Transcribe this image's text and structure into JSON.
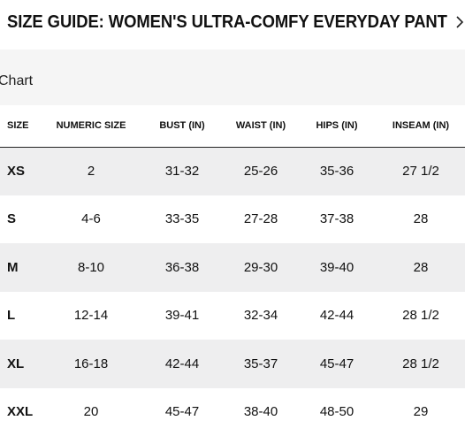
{
  "header": {
    "title": "SIZE GUIDE: WOMEN'S ULTRA-COMFY EVERYDAY PANT",
    "close_icon": "chevron-right-icon"
  },
  "tabs": {
    "active_label": "Chart"
  },
  "table": {
    "columns": [
      "SIZE",
      "NUMERIC SIZE",
      "BUST (IN)",
      "WAIST (IN)",
      "HIPS (IN)",
      "INSEAM (IN)"
    ],
    "rows": [
      [
        "XS",
        "2",
        "31-32",
        "25-26",
        "35-36",
        "27 1/2"
      ],
      [
        "S",
        "4-6",
        "33-35",
        "27-28",
        "37-38",
        "28"
      ],
      [
        "M",
        "8-10",
        "36-38",
        "29-30",
        "39-40",
        "28"
      ],
      [
        "L",
        "12-14",
        "39-41",
        "32-34",
        "42-44",
        "28 1/2"
      ],
      [
        "XL",
        "16-18",
        "42-44",
        "35-37",
        "45-47",
        "28 1/2"
      ],
      [
        "XXL",
        "20",
        "45-47",
        "38-40",
        "48-50",
        "29"
      ]
    ],
    "stripe_color": "#eeeeef"
  }
}
